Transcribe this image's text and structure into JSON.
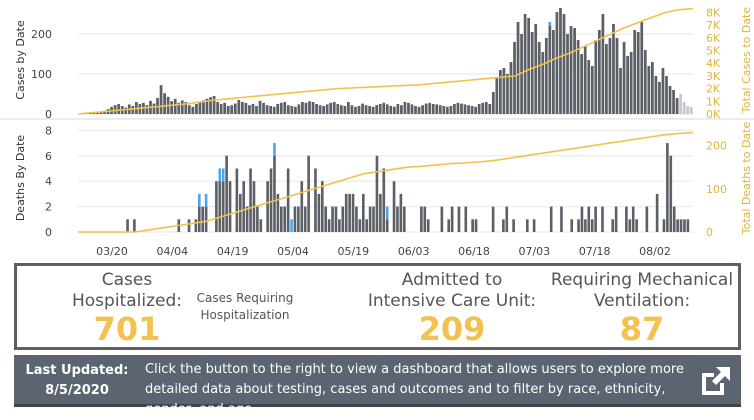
{
  "chart_data": [
    {
      "type": "bar",
      "title": "",
      "ylabel": "Cases by Date",
      "ylabel_right": "Total Cases to Date",
      "ylim": [
        0,
        270
      ],
      "ylim_right": [
        0,
        8500
      ],
      "yticks": [
        "0",
        "100",
        "200"
      ],
      "yticks_right": [
        "0K",
        "1K",
        "2K",
        "3K",
        "4K",
        "5K",
        "6K",
        "7K",
        "8K"
      ],
      "x_labels": [
        "03/20",
        "04/04",
        "04/19",
        "05/04",
        "05/19",
        "06/03",
        "06/18",
        "07/03",
        "07/18",
        "08/02"
      ],
      "values": [
        1,
        2,
        2,
        3,
        3,
        4,
        5,
        8,
        12,
        18,
        22,
        25,
        20,
        16,
        24,
        20,
        30,
        25,
        28,
        22,
        33,
        26,
        40,
        72,
        52,
        43,
        32,
        38,
        28,
        34,
        30,
        22,
        18,
        25,
        30,
        34,
        38,
        42,
        45,
        30,
        25,
        28,
        20,
        22,
        26,
        35,
        30,
        28,
        22,
        25,
        20,
        33,
        28,
        22,
        20,
        18,
        25,
        28,
        30,
        22,
        20,
        18,
        24,
        30,
        28,
        32,
        30,
        25,
        22,
        20,
        24,
        28,
        30,
        25,
        22,
        20,
        30,
        22,
        18,
        20,
        26,
        22,
        20,
        18,
        22,
        25,
        28,
        24,
        20,
        18,
        25,
        22,
        30,
        28,
        24,
        20,
        18,
        22,
        26,
        28,
        25,
        24,
        22,
        20,
        18,
        20,
        25,
        28,
        26,
        24,
        22,
        20,
        18,
        25,
        28,
        30,
        25,
        55,
        90,
        110,
        115,
        100,
        130,
        180,
        230,
        200,
        250,
        240,
        205,
        225,
        180,
        155,
        190,
        230,
        210,
        255,
        265,
        250,
        200,
        220,
        215,
        185,
        150,
        170,
        135,
        120,
        185,
        210,
        250,
        175,
        190,
        225,
        190,
        115,
        180,
        145,
        155,
        210,
        205,
        230,
        160,
        120,
        130,
        95,
        80,
        115,
        95,
        70,
        60,
        40,
        50,
        30,
        20,
        18
      ],
      "highlight": [
        0,
        0,
        0,
        0,
        0,
        0,
        0,
        0,
        0,
        0,
        0,
        0,
        0,
        0,
        0,
        0,
        0,
        0,
        0,
        0,
        0,
        0,
        0,
        0,
        0,
        0,
        0,
        0,
        0,
        0,
        0,
        0,
        0,
        0,
        0,
        0,
        0,
        0,
        0,
        0,
        0,
        0,
        0,
        0,
        0,
        0,
        0,
        0,
        0,
        0,
        0,
        0,
        0,
        0,
        0,
        0,
        0,
        0,
        0,
        0,
        0,
        0,
        0,
        0,
        0,
        0,
        0,
        0,
        0,
        0,
        0,
        0,
        0,
        0,
        0,
        0,
        0,
        0,
        0,
        0,
        0,
        0,
        0,
        0,
        0,
        0,
        0,
        0,
        0,
        0,
        0,
        0,
        0,
        0,
        0,
        0,
        0,
        0,
        0,
        0,
        0,
        0,
        0,
        0,
        0,
        0,
        0,
        0,
        0,
        0,
        0,
        0,
        0,
        0,
        0,
        0,
        0,
        0,
        0,
        0,
        0,
        0,
        0,
        0,
        0,
        0,
        0,
        0,
        0,
        0,
        0,
        0,
        0,
        10,
        0,
        0,
        0,
        0,
        0,
        0,
        0,
        0,
        0,
        0,
        0,
        0,
        0,
        0,
        0,
        0,
        0,
        0,
        0,
        0,
        0,
        0,
        0,
        0,
        0,
        0,
        0,
        0,
        0,
        0,
        0,
        0,
        0,
        0,
        0,
        0,
        0,
        0,
        0,
        0,
        0,
        0,
        0,
        0,
        0,
        0
      ],
      "cumulative": [
        0,
        100,
        200,
        300,
        400,
        500,
        600,
        700,
        800,
        950,
        1100,
        1200,
        1300,
        1400,
        1500,
        1600,
        1700,
        1800,
        1900,
        2000,
        2050,
        2100,
        2150,
        2200,
        2250,
        2300,
        2400,
        2500,
        2600,
        2700,
        2800,
        2900,
        3000,
        3500,
        3900,
        4400,
        4800,
        5300,
        5800,
        6300,
        6800,
        7200,
        7600,
        8000,
        8200,
        8300
      ]
    },
    {
      "type": "bar",
      "title": "",
      "ylabel": "Deaths By Date",
      "ylabel_right": "Total Deaths to Date",
      "ylim": [
        0,
        8.5
      ],
      "ylim_right": [
        0,
        250
      ],
      "yticks": [
        "0",
        "2",
        "4",
        "6",
        "8"
      ],
      "yticks_right": [
        "0",
        "100",
        "200"
      ],
      "values": [
        0,
        0,
        0,
        0,
        0,
        0,
        0,
        0,
        0,
        0,
        0,
        0,
        0,
        0,
        1,
        0,
        1,
        0,
        0,
        0,
        0,
        0,
        0,
        0,
        0,
        0,
        0,
        0,
        0,
        1,
        0,
        0,
        1,
        0,
        1,
        3,
        2,
        3,
        0,
        0,
        4,
        5,
        5,
        6,
        4,
        0,
        5,
        3,
        4,
        2,
        5,
        4,
        2,
        1,
        0,
        4,
        5,
        7,
        3,
        2,
        2,
        5,
        1,
        2,
        2,
        4,
        2,
        6,
        0,
        5,
        3,
        4,
        2,
        1,
        2,
        2,
        1,
        2,
        3,
        3,
        3,
        2,
        1,
        3,
        1,
        2,
        2,
        6,
        3,
        5,
        2,
        0,
        4,
        2,
        3,
        2,
        0,
        0,
        0,
        0,
        2,
        2,
        1,
        0,
        0,
        0,
        2,
        0,
        1,
        2,
        0,
        2,
        0,
        2,
        0,
        1,
        1,
        0,
        0,
        0,
        0,
        2,
        0,
        0,
        1,
        2,
        0,
        1,
        0,
        0,
        0,
        1,
        0,
        1,
        0,
        0,
        0,
        0,
        2,
        0,
        0,
        2,
        0,
        0,
        1,
        0,
        1,
        2,
        1,
        2,
        1,
        2,
        0,
        2,
        0,
        0,
        1,
        2,
        0,
        0,
        2,
        1,
        2,
        1,
        0,
        0,
        2,
        0,
        0,
        3,
        0,
        1,
        7,
        6,
        2,
        1,
        1,
        1,
        1,
        0
      ],
      "highlight": [
        0,
        0,
        0,
        0,
        0,
        0,
        0,
        0,
        0,
        0,
        0,
        0,
        0,
        0,
        0,
        0,
        0,
        0,
        0,
        0,
        0,
        0,
        0,
        0,
        0,
        0,
        0,
        0,
        0,
        0,
        0,
        0,
        0,
        0,
        0,
        1,
        0,
        1,
        0,
        0,
        0,
        1,
        1,
        0,
        0,
        0,
        0,
        0,
        0,
        0,
        0,
        0,
        0,
        0,
        0,
        0,
        0,
        1,
        0,
        0,
        0,
        0,
        1,
        0,
        0,
        0,
        0,
        0,
        0,
        0,
        0,
        0,
        0,
        0,
        0,
        0,
        0,
        0,
        0,
        0,
        0,
        0,
        0,
        0,
        0,
        0,
        0,
        0,
        0,
        0,
        1,
        0,
        0,
        0,
        0,
        0,
        0,
        0,
        0,
        0,
        0,
        0,
        0,
        0,
        0,
        0,
        0,
        0,
        0,
        0,
        0,
        0,
        0,
        0,
        0,
        0,
        0,
        0,
        0,
        0,
        0,
        0,
        0,
        0,
        0,
        0,
        0,
        0,
        0,
        0,
        0,
        0,
        0,
        0,
        0,
        0,
        0,
        0,
        0,
        0,
        0,
        0,
        0,
        0,
        0,
        0,
        0,
        0,
        0,
        0,
        0,
        0,
        0,
        0,
        0,
        0,
        0,
        0,
        0,
        0,
        0,
        0,
        0,
        0,
        0,
        0,
        0,
        0,
        0,
        0,
        0,
        0,
        0,
        0,
        0,
        0,
        0,
        0,
        0,
        0,
        0
      ],
      "cumulative": [
        0,
        0,
        0,
        0,
        0,
        5,
        10,
        15,
        20,
        25,
        35,
        45,
        55,
        65,
        75,
        85,
        95,
        105,
        115,
        125,
        135,
        140,
        145,
        150,
        152,
        155,
        158,
        160,
        162,
        165,
        170,
        175,
        180,
        185,
        190,
        195,
        200,
        205,
        210,
        215,
        220,
        225,
        228,
        230
      ]
    }
  ],
  "colors": {
    "bar": "#5b5f66",
    "highlight": "#4ea6e8",
    "recent": "#c8c8c8",
    "line": "#f2c14e"
  },
  "stats": {
    "hospitalized_label_line1": "Cases",
    "hospitalized_label_line2": "Hospitalized:",
    "hospitalized_value": "701",
    "requiring_label_line1": "Cases Requiring",
    "requiring_label_line2": "Hospitalization",
    "icu_label_line1": "Admitted to",
    "icu_label_line2": "Intensive Care Unit:",
    "icu_value": "209",
    "vent_label_line1": "Requiring Mechanical",
    "vent_label_line2": "Ventilation:",
    "vent_value": "87"
  },
  "footer": {
    "updated_label": "Last Updated:",
    "updated_date": "8/5/2020",
    "message": "Click the button to the right to view a dashboard that allows users to explore more detailed data about testing, cases and outcomes and to filter by race, ethnicity, gender, and age.",
    "external_icon": "external-link-icon"
  }
}
